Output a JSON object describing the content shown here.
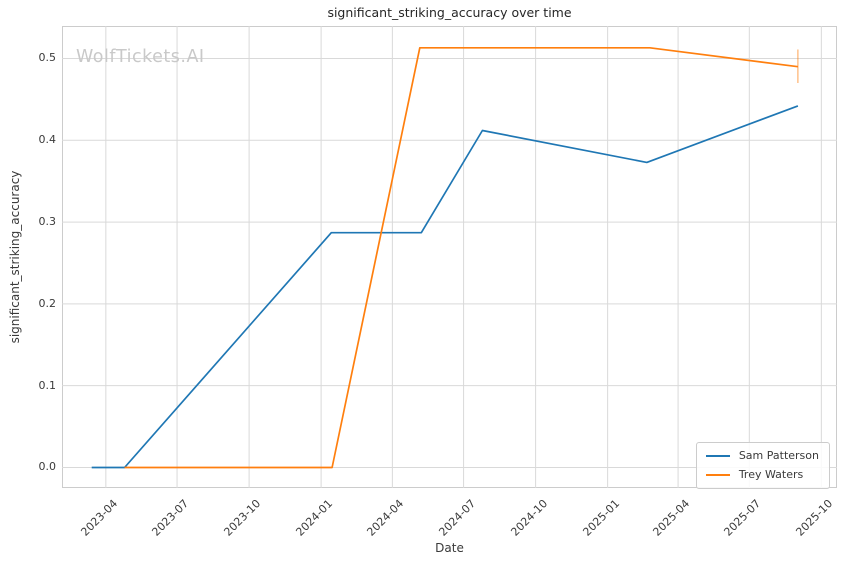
{
  "chart_data": {
    "type": "line",
    "title": "significant_striking_accuracy over time",
    "xlabel": "Date",
    "ylabel": "significant_striking_accuracy",
    "watermark": "WolfTickets.AI",
    "grid": true,
    "legend_position": "lower right",
    "xlim": [
      "2023-02-04",
      "2025-10-21"
    ],
    "ylim": [
      -0.0251,
      0.5397
    ],
    "xticks": [
      "2023-04",
      "2023-07",
      "2023-10",
      "2024-01",
      "2024-04",
      "2024-07",
      "2024-10",
      "2025-01",
      "2025-04",
      "2025-07",
      "2025-10"
    ],
    "ytick_labels": [
      "0.0",
      "0.1",
      "0.2",
      "0.3",
      "0.4",
      "0.5"
    ],
    "series": [
      {
        "name": "Sam Patterson",
        "color": "#1f77b4",
        "points": [
          {
            "x": "2023-03-14",
            "y": 0.0
          },
          {
            "x": "2023-04-25",
            "y": 0.0
          },
          {
            "x": "2024-01-14",
            "y": 0.287
          },
          {
            "x": "2024-05-08",
            "y": 0.287
          },
          {
            "x": "2024-07-25",
            "y": 0.412
          },
          {
            "x": "2025-02-20",
            "y": 0.373
          },
          {
            "x": "2025-09-01",
            "y": 0.442
          }
        ]
      },
      {
        "name": "Trey Waters",
        "color": "#ff7f0e",
        "points": [
          {
            "x": "2023-04-25",
            "y": 0.0
          },
          {
            "x": "2024-01-15",
            "y": 0.0
          },
          {
            "x": "2024-05-06",
            "y": 0.513
          },
          {
            "x": "2025-02-24",
            "y": 0.513
          },
          {
            "x": "2025-09-01",
            "y": 0.49
          }
        ],
        "error_bar": {
          "x": "2025-09-01",
          "y": 0.49,
          "low": 0.47,
          "high": 0.511
        }
      }
    ],
    "colors": {
      "grid": "#d9d9d9",
      "spine": "#cccccc",
      "text": "#3a3a3a",
      "title_text": "#262626",
      "watermark": "#c9c9c9",
      "error_bar": "rgba(255,127,14,0.45)"
    }
  }
}
